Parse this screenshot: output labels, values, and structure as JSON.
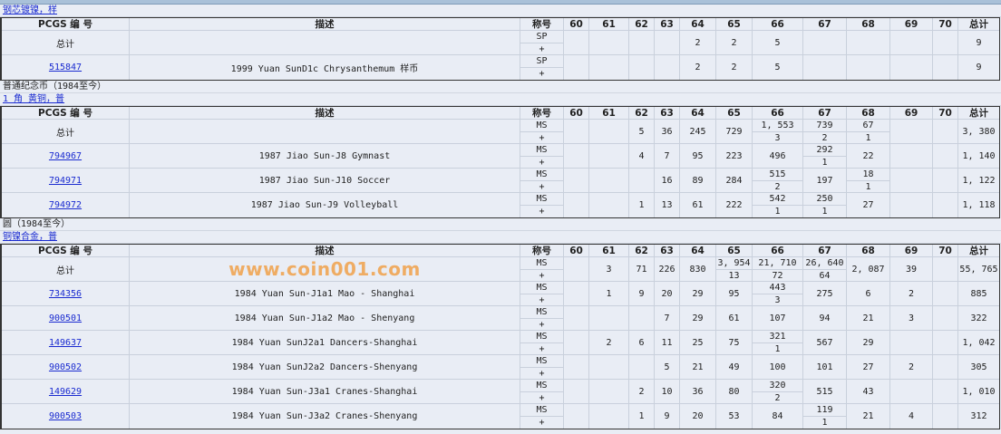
{
  "columns": {
    "id": "PCGS 编 号",
    "desc": "描述",
    "grade": "称号",
    "grades": [
      "60",
      "61",
      "62",
      "63",
      "64",
      "65",
      "66",
      "67",
      "68",
      "69",
      "70"
    ],
    "total": "总计"
  },
  "total_label": "总计",
  "sections": [
    {
      "category": null,
      "link": "钢芯镀镍，样",
      "grade_label": "SP",
      "plus": "+",
      "total_row": {
        "cells": [
          null,
          null,
          null,
          null,
          "2",
          "2",
          "5",
          null,
          null,
          null,
          null
        ],
        "total": "9"
      },
      "rows": [
        {
          "id": "515847",
          "desc": "1999 Yuan SunD1c Chrysanthemum 样币",
          "cells": [
            null,
            null,
            null,
            null,
            "2",
            "2",
            "5",
            null,
            null,
            null,
            null
          ],
          "total": "9"
        }
      ]
    },
    {
      "category": "普通纪念币（1984至今）",
      "link": "1 角 黄铜，普",
      "grade_label": "MS",
      "plus": "+",
      "total_row": {
        "cells": [
          null,
          null,
          "5",
          "36",
          "245",
          "729",
          [
            "1, 553",
            "3"
          ],
          [
            "739",
            "2"
          ],
          [
            "67",
            "1"
          ],
          null,
          null
        ],
        "total": "3, 380"
      },
      "rows": [
        {
          "id": "794967",
          "desc": "1987 Jiao Sun-J8 Gymnast",
          "cells": [
            null,
            null,
            "4",
            "7",
            "95",
            "223",
            "496",
            [
              "292",
              "1"
            ],
            "22",
            null,
            null
          ],
          "total": "1, 140"
        },
        {
          "id": "794971",
          "desc": "1987 Jiao Sun-J10 Soccer",
          "cells": [
            null,
            null,
            null,
            "16",
            "89",
            "284",
            [
              "515",
              "2"
            ],
            "197",
            [
              "18",
              "1"
            ],
            null,
            null
          ],
          "total": "1, 122"
        },
        {
          "id": "794972",
          "desc": "1987 Jiao Sun-J9 Volleyball",
          "cells": [
            null,
            null,
            "1",
            "13",
            "61",
            "222",
            [
              "542",
              "1"
            ],
            [
              "250",
              "1"
            ],
            "27",
            null,
            null
          ],
          "total": "1, 118"
        }
      ]
    },
    {
      "category": "圆（1984至今）",
      "link": "铜镍合金，普",
      "grade_label": "MS",
      "plus": "+",
      "total_row": {
        "cells": [
          null,
          "3",
          "71",
          "226",
          "830",
          [
            "3, 954",
            "13"
          ],
          [
            "21, 710",
            "72"
          ],
          [
            "26, 640",
            "64"
          ],
          "2, 087",
          "39",
          null
        ],
        "total": "55, 765"
      },
      "rows": [
        {
          "id": "734356",
          "desc": "1984 Yuan Sun-J1a1 Mao - Shanghai",
          "cells": [
            null,
            "1",
            "9",
            "20",
            "29",
            "95",
            [
              "443",
              "3"
            ],
            "275",
            "6",
            "2",
            null
          ],
          "total": "885"
        },
        {
          "id": "900501",
          "desc": "1984 Yuan Sun-J1a2 Mao - Shenyang",
          "cells": [
            null,
            null,
            null,
            "7",
            "29",
            "61",
            "107",
            "94",
            "21",
            "3",
            null
          ],
          "total": "322"
        },
        {
          "id": "149637",
          "desc": "1984 Yuan SunJ2a1 Dancers-Shanghai",
          "cells": [
            null,
            "2",
            "6",
            "11",
            "25",
            "75",
            [
              "321",
              "1"
            ],
            "567",
            "29",
            null,
            null
          ],
          "total": "1, 042"
        },
        {
          "id": "900502",
          "desc": "1984 Yuan SunJ2a2 Dancers-Shenyang",
          "cells": [
            null,
            null,
            null,
            "5",
            "21",
            "49",
            "100",
            "101",
            "27",
            "2",
            null
          ],
          "total": "305"
        },
        {
          "id": "149629",
          "desc": "1984 Yuan Sun-J3a1 Cranes-Shanghai",
          "cells": [
            null,
            null,
            "2",
            "10",
            "36",
            "80",
            [
              "320",
              "2"
            ],
            "515",
            "43",
            null,
            null
          ],
          "total": "1, 010"
        },
        {
          "id": "900503",
          "desc": "1984 Yuan Sun-J3a2 Cranes-Shenyang",
          "cells": [
            null,
            null,
            "1",
            "9",
            "20",
            "53",
            "84",
            [
              "119",
              "1"
            ],
            "21",
            "4",
            null
          ],
          "total": "312"
        }
      ]
    }
  ],
  "watermark": "www.coin001.com",
  "colors": {
    "link": "#1a2bd0",
    "background": "#e9edf5",
    "watermark": "#f09632"
  }
}
